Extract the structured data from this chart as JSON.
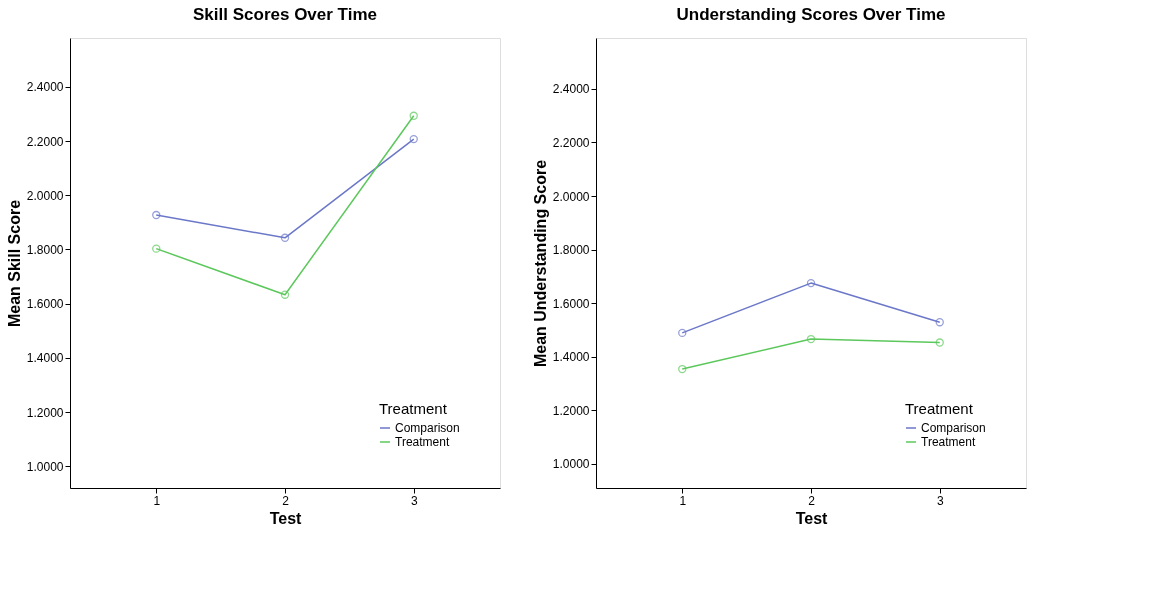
{
  "chart_data": [
    {
      "type": "line",
      "title": "Skill Scores Over Time",
      "xlabel": "Test",
      "ylabel": "Mean Skill Score",
      "legend_title": "Treatment",
      "legend": "bottom right",
      "grid": false,
      "marker": "circle",
      "line_style": "solid",
      "x": [
        1,
        2,
        3
      ],
      "xlim": [
        0.33,
        3.67
      ],
      "xticks": [
        1,
        2,
        3
      ],
      "ylim": [
        0.92,
        2.58
      ],
      "yticks": [
        {
          "value": 1.0,
          "label": "1.0000"
        },
        {
          "value": 1.2,
          "label": "1.2000"
        },
        {
          "value": 1.4,
          "label": "1.4000"
        },
        {
          "value": 1.6,
          "label": "1.6000"
        },
        {
          "value": 1.8,
          "label": "1.8000"
        },
        {
          "value": 2.0,
          "label": "2.0000"
        },
        {
          "value": 2.2,
          "label": "2.2000"
        },
        {
          "value": 2.4,
          "label": "2.4000"
        }
      ],
      "series": [
        {
          "name": "Comparison",
          "color": "#6b77c8",
          "values": [
            1.927,
            1.843,
            2.207
          ]
        },
        {
          "name": "Treatment",
          "color": "#5cc85c",
          "values": [
            1.803,
            1.633,
            2.293
          ]
        }
      ]
    },
    {
      "type": "line",
      "title": "Understanding Scores Over Time",
      "xlabel": "Test",
      "ylabel": "Mean Understanding Score",
      "legend_title": "Treatment",
      "legend": "bottom right",
      "grid": false,
      "marker": "circle",
      "line_style": "solid",
      "x": [
        1,
        2,
        3
      ],
      "xlim": [
        0.33,
        3.67
      ],
      "xticks": [
        1,
        2,
        3
      ],
      "ylim": [
        0.91,
        2.59
      ],
      "yticks": [
        {
          "value": 1.0,
          "label": "1.0000"
        },
        {
          "value": 1.2,
          "label": "1.2000"
        },
        {
          "value": 1.4,
          "label": "1.4000"
        },
        {
          "value": 1.6,
          "label": "1.6000"
        },
        {
          "value": 1.8,
          "label": "1.8000"
        },
        {
          "value": 2.0,
          "label": "2.0000"
        },
        {
          "value": 2.2,
          "label": "2.2000"
        },
        {
          "value": 2.4,
          "label": "2.4000"
        }
      ],
      "series": [
        {
          "name": "Comparison",
          "color": "#6b77c8",
          "values": [
            1.489,
            1.675,
            1.529
          ]
        },
        {
          "name": "Treatment",
          "color": "#5cc85c",
          "values": [
            1.354,
            1.466,
            1.453
          ]
        }
      ]
    }
  ]
}
